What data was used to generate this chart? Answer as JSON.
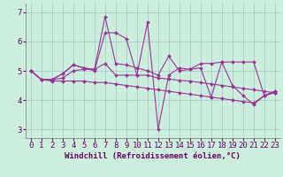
{
  "xlabel": "Windchill (Refroidissement éolien,°C)",
  "background_color": "#cceedd",
  "grid_color": "#aacccc",
  "line_color": "#993399",
  "spine_color": "#888888",
  "xlim_min": -0.5,
  "xlim_max": 23.5,
  "ylim_min": 2.7,
  "ylim_max": 7.3,
  "yticks": [
    3,
    4,
    5,
    6,
    7
  ],
  "xticks": [
    0,
    1,
    2,
    3,
    4,
    5,
    6,
    7,
    8,
    9,
    10,
    11,
    12,
    13,
    14,
    15,
    16,
    17,
    18,
    19,
    20,
    21,
    22,
    23
  ],
  "series": [
    [
      5.0,
      4.7,
      4.7,
      4.75,
      5.0,
      5.05,
      5.05,
      5.25,
      4.85,
      4.85,
      4.85,
      4.85,
      4.75,
      4.72,
      4.67,
      4.65,
      4.6,
      4.55,
      4.5,
      4.45,
      4.4,
      4.35,
      4.3,
      4.25
    ],
    [
      5.0,
      4.7,
      4.65,
      4.65,
      4.65,
      4.65,
      4.6,
      4.6,
      4.55,
      4.5,
      4.45,
      4.4,
      4.35,
      4.3,
      4.25,
      4.2,
      4.15,
      4.1,
      4.05,
      4.0,
      3.95,
      3.9,
      4.15,
      4.25
    ],
    [
      5.0,
      4.7,
      4.7,
      4.9,
      5.2,
      5.1,
      5.05,
      6.85,
      5.25,
      5.2,
      5.1,
      5.0,
      4.85,
      5.5,
      5.0,
      5.05,
      5.25,
      5.25,
      5.3,
      5.3,
      5.3,
      5.3,
      4.15,
      4.3
    ],
    [
      5.0,
      4.7,
      4.7,
      4.9,
      5.2,
      5.1,
      5.0,
      6.3,
      6.3,
      6.1,
      4.85,
      6.65,
      3.0,
      4.85,
      5.1,
      5.05,
      5.1,
      4.1,
      5.3,
      4.5,
      4.15,
      3.85,
      4.15,
      4.3
    ]
  ],
  "tick_fontsize": 6.5,
  "xlabel_fontsize": 6.5
}
